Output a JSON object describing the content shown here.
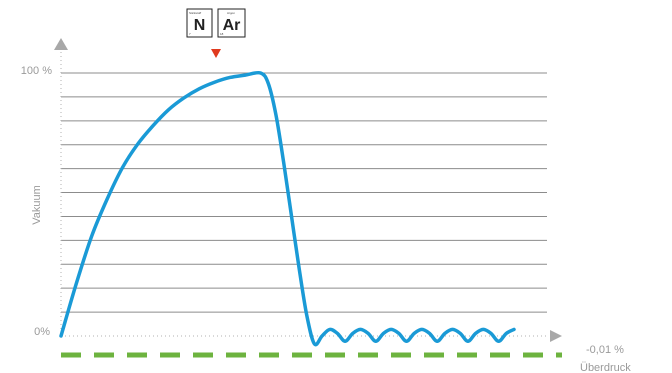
{
  "chart_data": {
    "type": "line",
    "ylabel": "Vakuum",
    "y_tick_labels": [
      "0%",
      "100 %"
    ],
    "overpressure_label": "-0,01 %",
    "overpressure_caption": "Überdruck",
    "gridlines": 11,
    "ylim": [
      0,
      100
    ],
    "marker_elements": [
      {
        "symbol": "N",
        "name": "Stickstoff",
        "number": "7"
      },
      {
        "symbol": "Ar",
        "name": "Argon",
        "number": "18"
      }
    ],
    "series": [
      {
        "color": "#1a9ad6",
        "points": [
          [
            0,
            0
          ],
          [
            2,
            20
          ],
          [
            4,
            38
          ],
          [
            6,
            52
          ],
          [
            8,
            64
          ],
          [
            10,
            73
          ],
          [
            12,
            80
          ],
          [
            14,
            86
          ],
          [
            16,
            90.5
          ],
          [
            18,
            94
          ],
          [
            20,
            96.5
          ],
          [
            22,
            98.3
          ],
          [
            24,
            99.2
          ],
          [
            26,
            100
          ],
          [
            27,
            96
          ],
          [
            28,
            84
          ],
          [
            29,
            66
          ],
          [
            30,
            46
          ],
          [
            31,
            26
          ],
          [
            32,
            8
          ],
          [
            33,
            -3
          ],
          [
            34,
            0
          ],
          [
            35,
            2.5
          ],
          [
            36,
            1
          ],
          [
            37,
            -2
          ],
          [
            38,
            1
          ],
          [
            39,
            2.5
          ],
          [
            40,
            1
          ],
          [
            41,
            -2
          ],
          [
            42,
            1
          ],
          [
            43,
            2.5
          ],
          [
            44,
            1
          ],
          [
            45,
            -2
          ],
          [
            46,
            1
          ],
          [
            47,
            2.5
          ],
          [
            48,
            1
          ],
          [
            49,
            -2
          ],
          [
            50,
            1
          ],
          [
            51,
            2.5
          ],
          [
            52,
            1
          ],
          [
            53,
            -2
          ],
          [
            54,
            1
          ],
          [
            55,
            2.5
          ],
          [
            56,
            1
          ],
          [
            57,
            -2
          ],
          [
            58,
            1
          ],
          [
            59,
            2.5
          ]
        ]
      }
    ],
    "baseline_color": "#6db33f",
    "marker_color": "#e03a1e",
    "grid_color": "#8c8c8c",
    "axis_color": "#b0b0b0"
  }
}
